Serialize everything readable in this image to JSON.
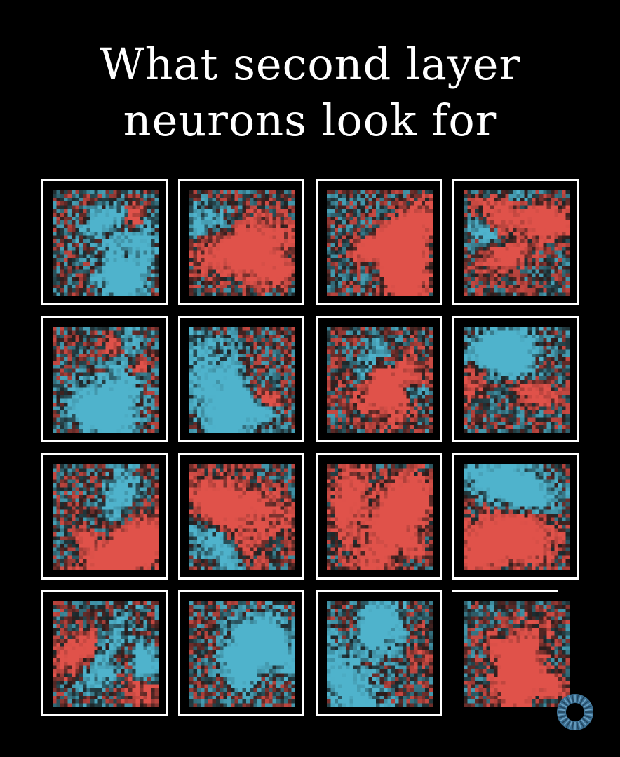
{
  "title": {
    "line1": "What second layer",
    "line2": "neurons look for"
  },
  "grid": {
    "rows": 4,
    "cols": 4,
    "pixels_per_side": 28,
    "colors": {
      "positive": "#e0524a",
      "negative": "#4fb3cc",
      "neutral": "#1a1a1a",
      "frame": "#ffffff"
    },
    "tiles": [
      {
        "id": 1,
        "framed": true
      },
      {
        "id": 2,
        "framed": true
      },
      {
        "id": 3,
        "framed": true
      },
      {
        "id": 4,
        "framed": true
      },
      {
        "id": 5,
        "framed": true
      },
      {
        "id": 6,
        "framed": true
      },
      {
        "id": 7,
        "framed": true
      },
      {
        "id": 8,
        "framed": true
      },
      {
        "id": 9,
        "framed": true
      },
      {
        "id": 10,
        "framed": true
      },
      {
        "id": 11,
        "framed": true
      },
      {
        "id": 12,
        "framed": true
      },
      {
        "id": 13,
        "framed": true
      },
      {
        "id": 14,
        "framed": true
      },
      {
        "id": 15,
        "framed": true
      },
      {
        "id": 16,
        "framed": false,
        "frame_progress": 0.2
      }
    ]
  },
  "loader": {
    "icon": "loading-spinner-icon",
    "color": "#4a8ab0"
  }
}
